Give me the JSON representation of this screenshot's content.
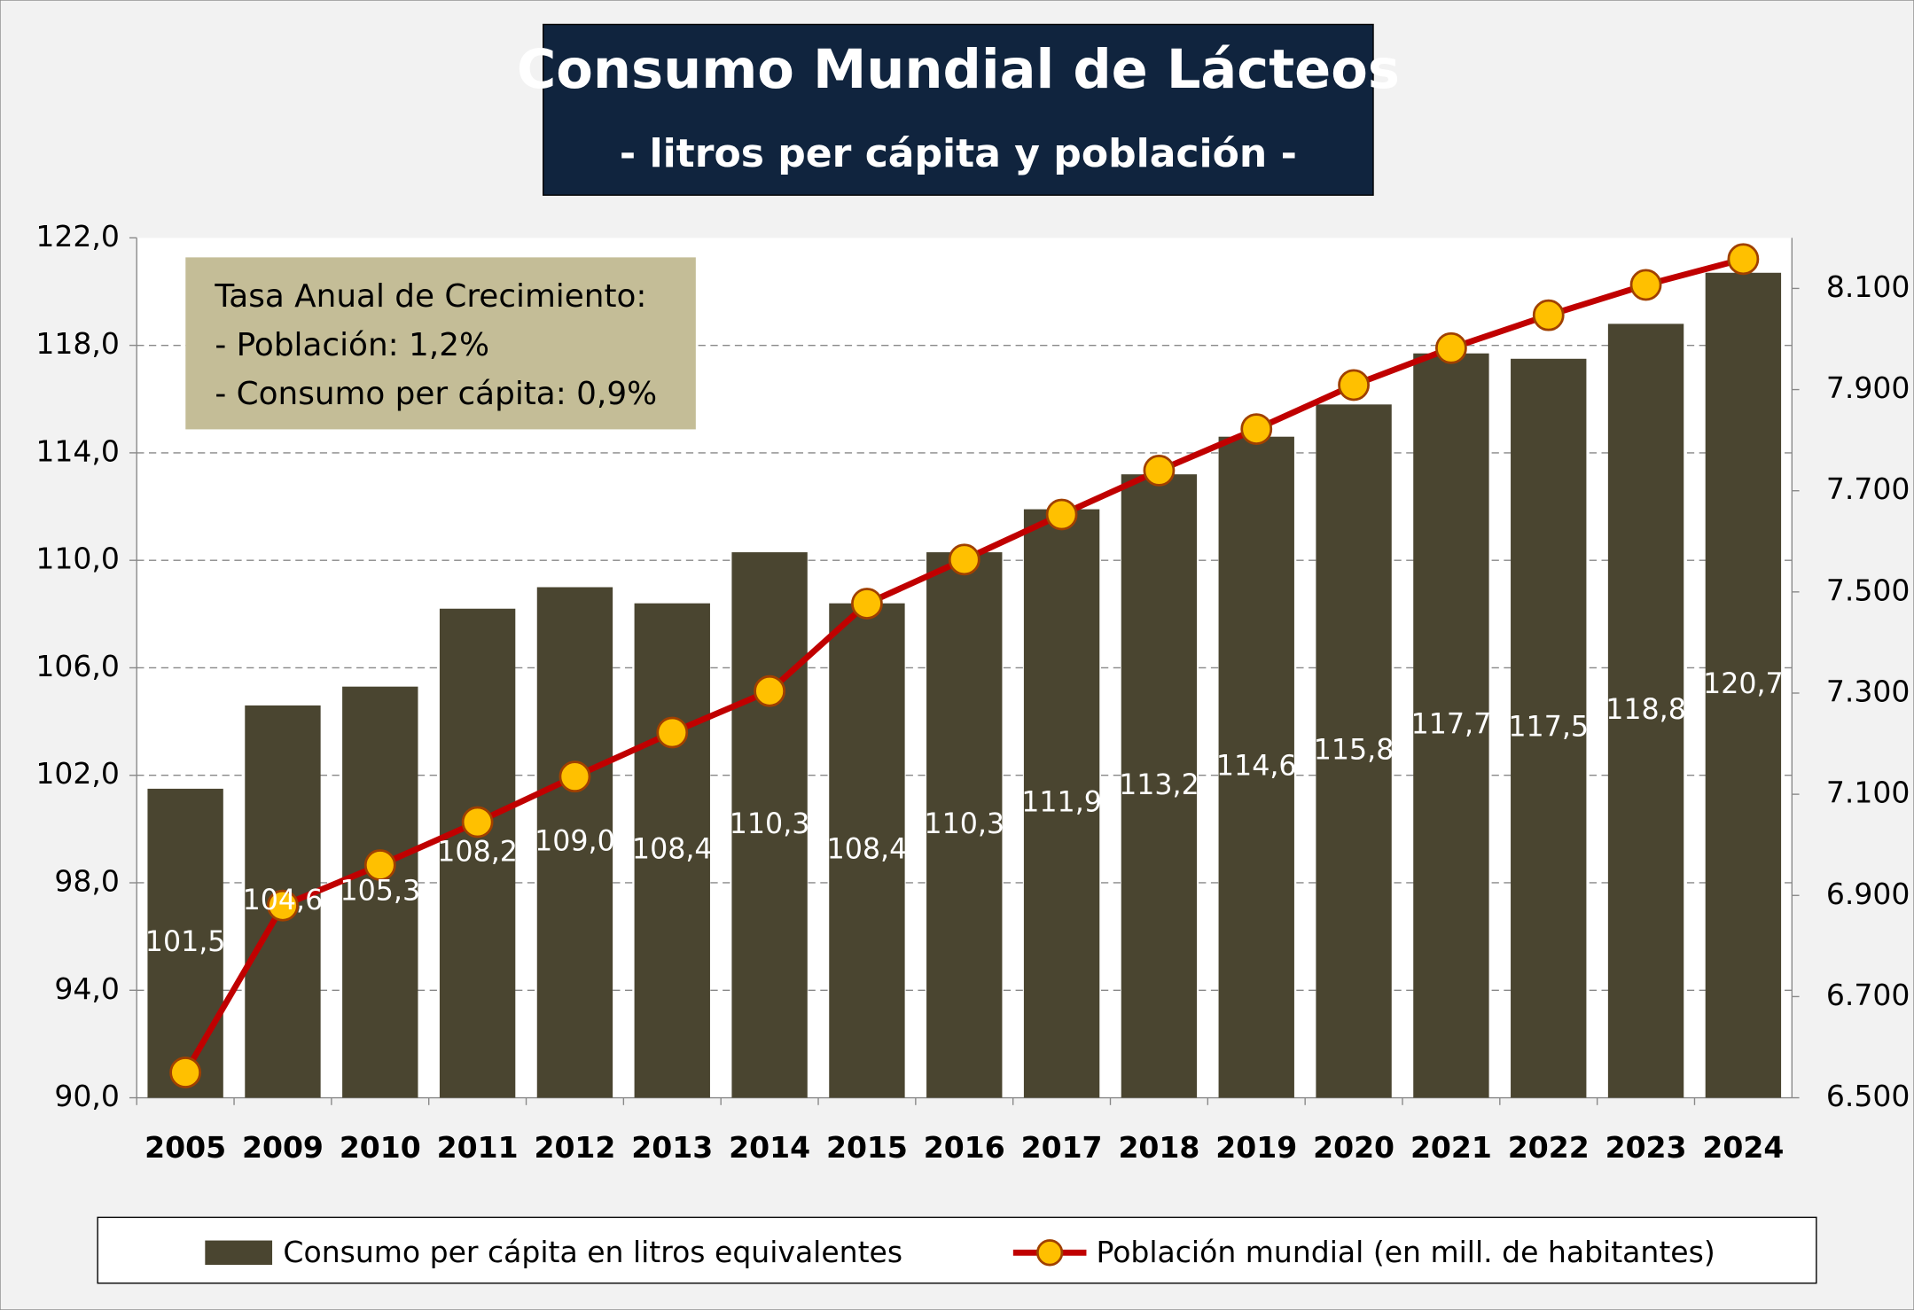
{
  "chart_data": {
    "type": "bar",
    "title": "Consumo Mundial de Lácteos",
    "subtitle": "- litros per cápita y población -",
    "annotation": [
      "Tasa Anual de Crecimiento:",
      "- Población: 1,2%",
      "- Consumo per cápita: 0,9%"
    ],
    "categories": [
      "2005",
      "2009",
      "2010",
      "2011",
      "2012",
      "2013",
      "2014",
      "2015",
      "2016",
      "2017",
      "2018",
      "2019",
      "2020",
      "2021",
      "2022",
      "2023",
      "2024"
    ],
    "series": [
      {
        "name": "Consumo per cápita en litros equivalentes",
        "type": "bar",
        "color": "#4a4530",
        "values": [
          101.5,
          104.6,
          105.3,
          108.2,
          109.0,
          108.4,
          110.3,
          108.4,
          110.3,
          111.9,
          113.2,
          114.6,
          115.8,
          117.7,
          117.5,
          118.8,
          120.7
        ],
        "value_labels": [
          "101,5",
          "104,6",
          "105,3",
          "108,2",
          "109,0",
          "108,4",
          "110,3",
          "108,4",
          "110,3",
          "111,9",
          "113,2",
          "114,6",
          "115,8",
          "117,7",
          "117,5",
          "118,8",
          "120,7"
        ]
      },
      {
        "name": "Población mundial (en mill. de habitantes)",
        "type": "line",
        "axis": "y2",
        "color": "#c00000",
        "marker_color": "#ffc000",
        "values": [
          6550,
          6880,
          6960,
          7045,
          7135,
          7222,
          7304,
          7477,
          7564,
          7653,
          7740,
          7822,
          7909,
          7982,
          8047,
          8107,
          8158
        ]
      }
    ],
    "ylim": [
      90,
      122
    ],
    "yticks": [
      {
        "value": 90,
        "label": "90,0"
      },
      {
        "value": 94,
        "label": "94,0"
      },
      {
        "value": 98,
        "label": "98,0"
      },
      {
        "value": 102,
        "label": "102,0"
      },
      {
        "value": 106,
        "label": "106,0"
      },
      {
        "value": 110,
        "label": "110,0"
      },
      {
        "value": 114,
        "label": "114,0"
      },
      {
        "value": 118,
        "label": "118,0"
      },
      {
        "value": 122,
        "label": "122,0"
      }
    ],
    "y2lim": [
      6500,
      8200
    ],
    "y2ticks": [
      {
        "value": 6500,
        "label": "6.500"
      },
      {
        "value": 6700,
        "label": "6.700"
      },
      {
        "value": 6900,
        "label": "6.900"
      },
      {
        "value": 7100,
        "label": "7.100"
      },
      {
        "value": 7300,
        "label": "7.300"
      },
      {
        "value": 7500,
        "label": "7.500"
      },
      {
        "value": 7700,
        "label": "7.700"
      },
      {
        "value": 7900,
        "label": "7.900"
      },
      {
        "value": 8100,
        "label": "8.100"
      }
    ],
    "grid": true,
    "legend": "bottom"
  }
}
